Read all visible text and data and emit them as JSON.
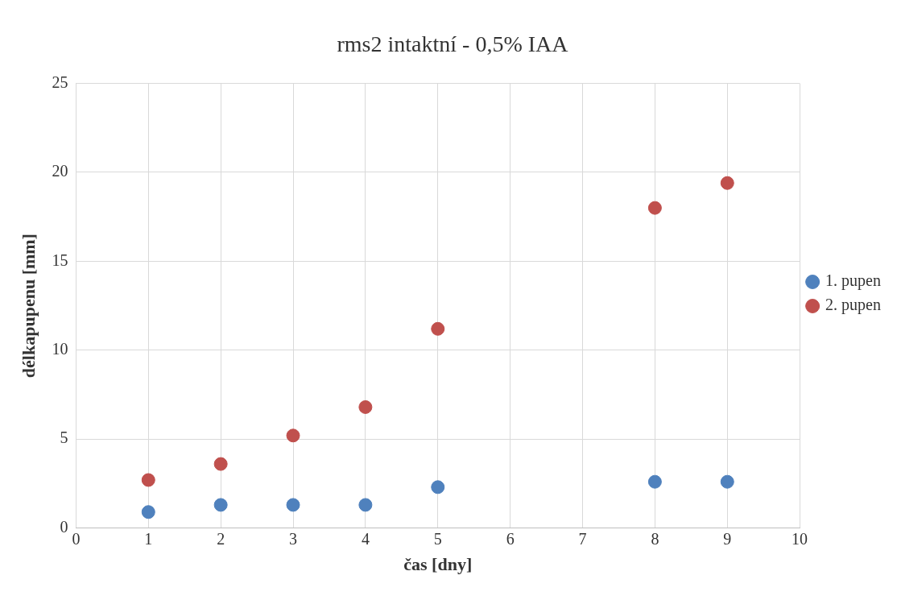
{
  "chart_data": {
    "type": "scatter",
    "title": "rms2 intaktní - 0,5% IAA",
    "xlabel": "čas [dny]",
    "ylabel": "délkapupenu [mm]",
    "x": [
      1,
      2,
      3,
      4,
      5,
      8,
      9
    ],
    "series": [
      {
        "name": "1. pupen",
        "color": "#4f81bd",
        "values": [
          0.9,
          1.3,
          1.3,
          1.3,
          2.3,
          2.6,
          2.6
        ]
      },
      {
        "name": "2. pupen",
        "color": "#c0504d",
        "values": [
          2.7,
          3.6,
          5.2,
          6.8,
          11.2,
          18.0,
          19.4
        ]
      }
    ],
    "xlim": [
      0,
      10
    ],
    "xticks": [
      0,
      1,
      2,
      3,
      4,
      5,
      6,
      7,
      8,
      9,
      10
    ],
    "ylim": [
      0,
      25
    ],
    "yticks": [
      0,
      5,
      10,
      15,
      20,
      25
    ],
    "grid": true,
    "legend": "right",
    "marker": "circle"
  }
}
